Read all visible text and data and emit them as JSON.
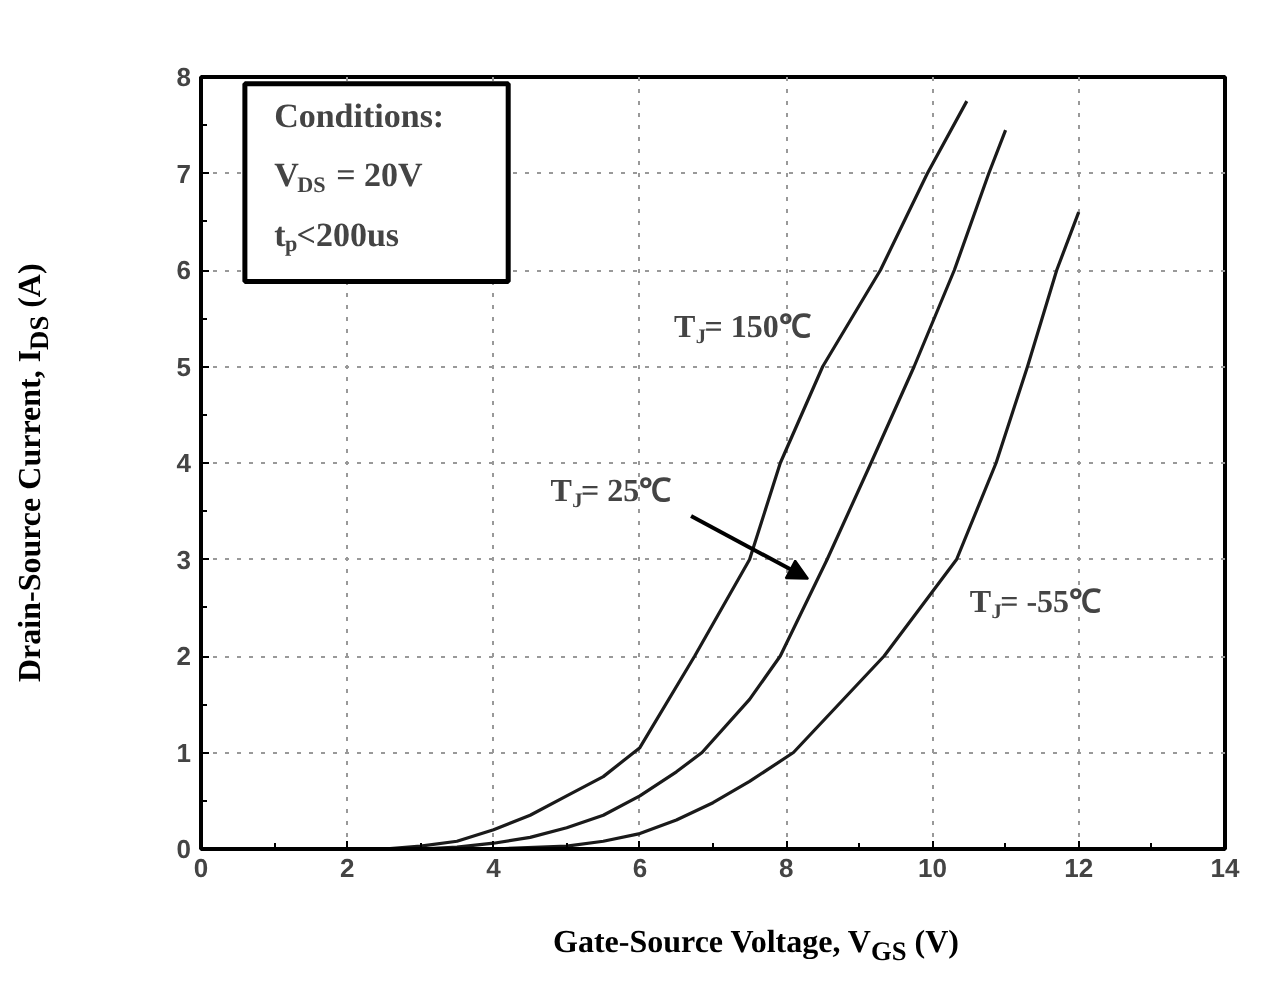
{
  "chart_data": {
    "type": "line",
    "xlabel": "Gate-Source Voltage, V$_{GS}$ (V)",
    "ylabel": "Drain-Source Current, I$_{DS}$ (A)",
    "xlim": [
      0,
      14
    ],
    "xticks": [
      0,
      2,
      4,
      6,
      8,
      10,
      12,
      14
    ],
    "ylim": [
      0,
      8
    ],
    "yticks": [
      0,
      1,
      2,
      3,
      4,
      5,
      6,
      7,
      8
    ],
    "grid": true,
    "marker": "none",
    "line_style": "solid",
    "series": [
      {
        "color": "#1a1a1a",
        "x": [
          2.5,
          3,
          3.5,
          4,
          4.5,
          5,
          5.5,
          6,
          6.75,
          7.5,
          7.92,
          8.5,
          9.29,
          9.93,
          10.47
        ],
        "values": [
          0,
          0.03,
          0.08,
          0.2,
          0.35,
          0.55,
          0.75,
          1.05,
          2,
          3,
          4,
          5,
          6,
          7,
          7.75
        ]
      },
      {
        "color": "#1a1a1a",
        "x": [
          3,
          3.5,
          4,
          4.5,
          5,
          5.5,
          6,
          6.5,
          6.85,
          7.5,
          7.92,
          8.56,
          9.16,
          9.75,
          10.3,
          10.77,
          11.0
        ],
        "values": [
          0,
          0.02,
          0.06,
          0.12,
          0.22,
          0.35,
          0.55,
          0.8,
          1,
          1.55,
          2,
          3,
          4,
          5,
          6,
          7,
          7.45
        ]
      },
      {
        "color": "#1a1a1a",
        "x": [
          4,
          5,
          5.5,
          6,
          6.5,
          7,
          7.5,
          8.1,
          9.34,
          10.33,
          10.87,
          11.3,
          11.7,
          12.0
        ],
        "values": [
          0,
          0.03,
          0.08,
          0.16,
          0.3,
          0.48,
          0.7,
          1,
          2,
          3,
          4,
          5,
          6,
          6.6
        ]
      }
    ],
    "annotations": [
      "Conditions:\nV$_{DS}$ = 20V\nt$_{p}$<200us",
      "T$_{J}$= 150℃",
      {
        "text": "T$_{J}$= 25℃",
        "x": 8.3,
        "y": 2.8
      },
      "T$_{J}$= -55℃"
    ]
  }
}
